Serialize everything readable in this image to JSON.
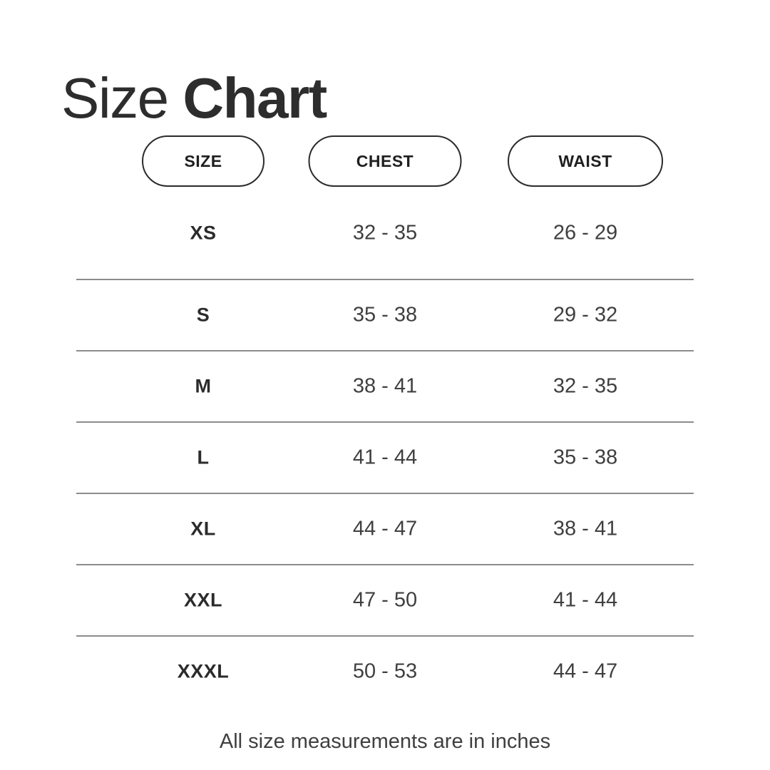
{
  "title": {
    "regular": "Size",
    "bold": "Chart"
  },
  "colors": {
    "background": "#ffffff",
    "title_ink": "#2d2d2d",
    "pill_border": "#2b2b2b",
    "divider": "#8c8c8c",
    "body_text": "#3f3f3f"
  },
  "chart_data": {
    "type": "table",
    "title": "Size Chart",
    "columns": [
      "SIZE",
      "CHEST",
      "WAIST"
    ],
    "rows": [
      {
        "size": "XS",
        "chest": "32 - 35",
        "waist": "26 - 29"
      },
      {
        "size": "S",
        "chest": "35 - 38",
        "waist": "29 - 32"
      },
      {
        "size": "M",
        "chest": "38 - 41",
        "waist": "32 - 35"
      },
      {
        "size": "L",
        "chest": "41 - 44",
        "waist": "35 - 38"
      },
      {
        "size": "XL",
        "chest": "44 - 47",
        "waist": "38 - 41"
      },
      {
        "size": "XXL",
        "chest": "47 - 50",
        "waist": "41 - 44"
      },
      {
        "size": "XXXL",
        "chest": "50 - 53",
        "waist": "44 - 47"
      }
    ],
    "note": "All size measurements are in inches"
  }
}
